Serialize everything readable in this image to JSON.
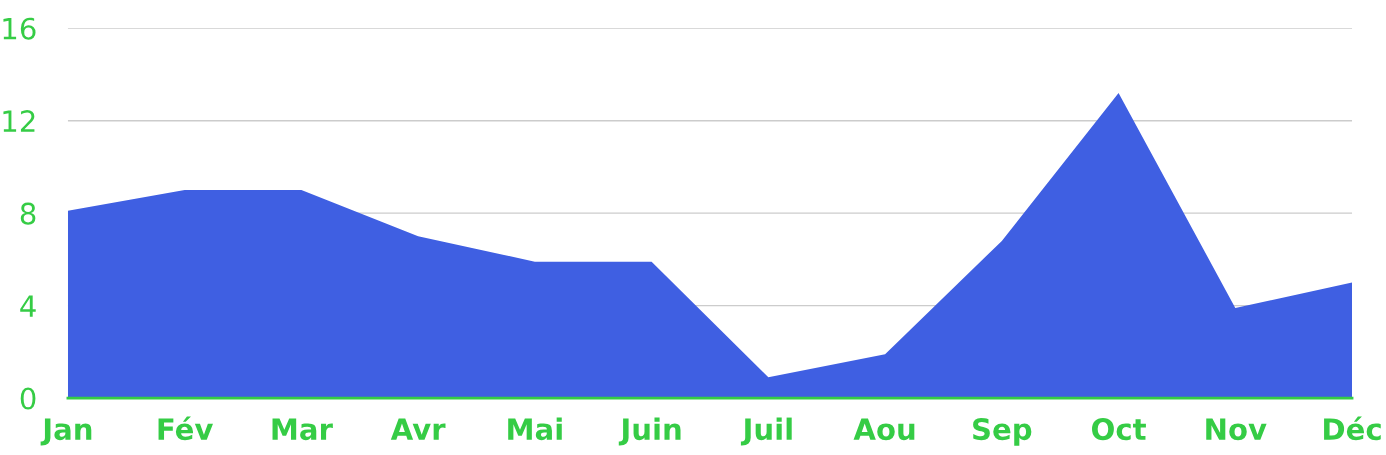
{
  "chart_data": {
    "type": "area",
    "categories": [
      "Jan",
      "Fév",
      "Mar",
      "Avr",
      "Mai",
      "Juin",
      "Juil",
      "Aou",
      "Sep",
      "Oct",
      "Nov",
      "Déc"
    ],
    "series": [
      {
        "color": "#3f5fe2",
        "values": [
          8.1,
          9,
          9,
          7,
          5.9,
          5.9,
          0.9,
          1.9,
          6.8,
          13.2,
          3.9,
          5
        ]
      }
    ],
    "ylim": [
      0,
      16
    ],
    "yticks": [
      0,
      4,
      8,
      12,
      16
    ],
    "grid": "y",
    "legend": false
  }
}
